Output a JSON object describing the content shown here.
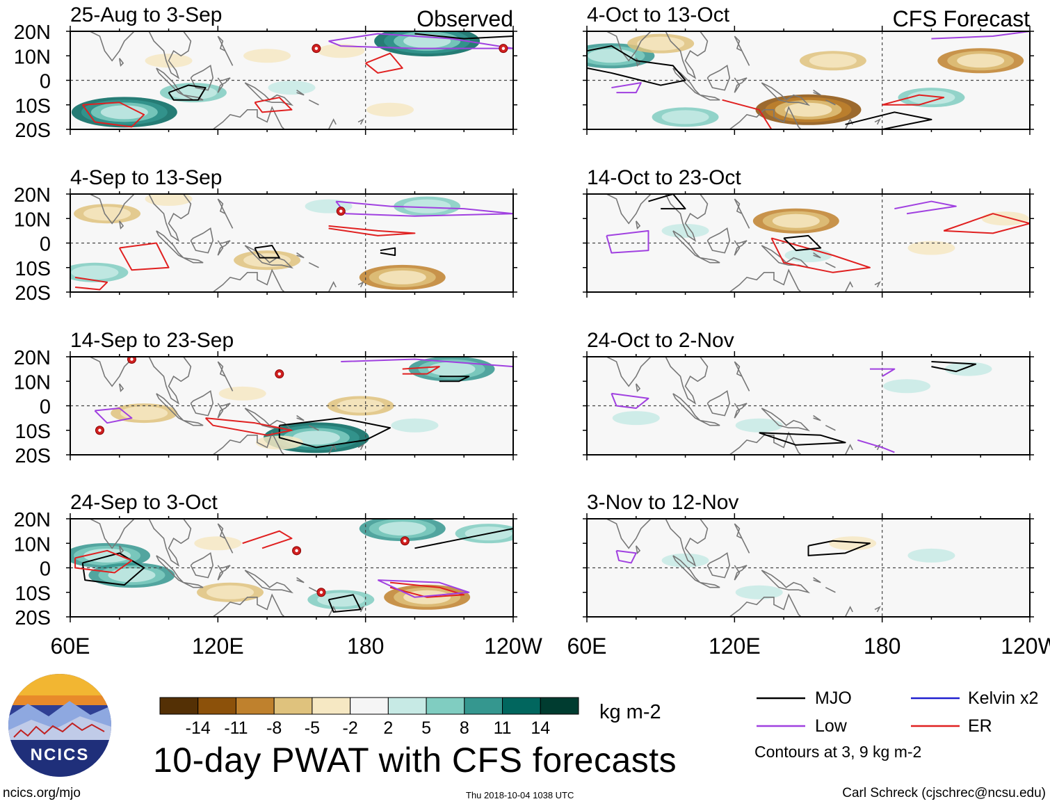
{
  "figure": {
    "title": "10-day PWAT with CFS forecasts",
    "units": "kg m-2",
    "contour_note": "Contours at 3, 9 kg m-2",
    "site": "ncics.org/mjo",
    "timestamp": "Thu 2018-10-04 1038 UTC",
    "author": "Carl Schreck (cjschrec@ncsu.edu)",
    "logo_text": "NCICS"
  },
  "columns": {
    "left_label": "Observed",
    "right_label": "CFS Forecast"
  },
  "axes": {
    "lat_ticks": [
      "20N",
      "10N",
      "0",
      "10S",
      "20S"
    ],
    "lon_ticks": [
      "60E",
      "120E",
      "180",
      "120W"
    ],
    "lat_range": [
      -20,
      20
    ],
    "lon_range": [
      60,
      240
    ]
  },
  "legend": {
    "mjo": "MJO",
    "low": "Low",
    "kelvin": "Kelvin x2",
    "er": "ER",
    "colors": {
      "mjo": "#000000",
      "low": "#a040e0",
      "kelvin": "#2020d0",
      "er": "#e02020"
    }
  },
  "colorbar": {
    "ticks": [
      "-14",
      "-11",
      "-8",
      "-5",
      "-2",
      "2",
      "5",
      "8",
      "11",
      "14"
    ],
    "colors": [
      "#543005",
      "#8c510a",
      "#bf812d",
      "#dfc27d",
      "#f6e8c3",
      "#f5f5f5",
      "#c7eae5",
      "#80cdc1",
      "#35978f",
      "#01665e",
      "#003c30"
    ]
  },
  "chart_data": [
    {
      "type": "heatmap",
      "title": "25-Aug to 3-Sep",
      "column": "Observed",
      "anomalies": [
        {
          "lon": 82,
          "lat": -13,
          "value": 12
        },
        {
          "lon": 110,
          "lat": -5,
          "value": 8
        },
        {
          "lon": 205,
          "lat": 16,
          "value": 12
        },
        {
          "lon": 170,
          "lat": 12,
          "value": -5
        },
        {
          "lon": 140,
          "lat": 10,
          "value": -5
        },
        {
          "lon": 150,
          "lat": -3,
          "value": 5
        },
        {
          "lon": 100,
          "lat": 8,
          "value": -4
        },
        {
          "lon": 190,
          "lat": -12,
          "value": -4
        }
      ],
      "tc_symbols": [
        {
          "lon": 160,
          "lat": 13
        },
        {
          "lon": 236,
          "lat": 13
        }
      ]
    },
    {
      "type": "heatmap",
      "title": "4-Sep to 13-Sep",
      "column": "Observed",
      "anomalies": [
        {
          "lon": 75,
          "lat": 12,
          "value": -8
        },
        {
          "lon": 140,
          "lat": -7,
          "value": -7
        },
        {
          "lon": 195,
          "lat": -14,
          "value": -9
        },
        {
          "lon": 70,
          "lat": -12,
          "value": 8
        },
        {
          "lon": 205,
          "lat": 15,
          "value": 7
        },
        {
          "lon": 165,
          "lat": 15,
          "value": 5
        },
        {
          "lon": 100,
          "lat": 18,
          "value": -5
        }
      ],
      "tc_symbols": [
        {
          "lon": 170,
          "lat": 13
        }
      ]
    },
    {
      "type": "heatmap",
      "title": "14-Sep to 23-Sep",
      "column": "Observed",
      "anomalies": [
        {
          "lon": 160,
          "lat": -13,
          "value": 12
        },
        {
          "lon": 90,
          "lat": -3,
          "value": -8
        },
        {
          "lon": 178,
          "lat": 0,
          "value": -8
        },
        {
          "lon": 215,
          "lat": 15,
          "value": 9
        },
        {
          "lon": 130,
          "lat": 5,
          "value": -5
        },
        {
          "lon": 200,
          "lat": -8,
          "value": 5
        },
        {
          "lon": 145,
          "lat": -15,
          "value": -5
        }
      ],
      "tc_symbols": [
        {
          "lon": 85,
          "lat": 19
        },
        {
          "lon": 145,
          "lat": 13
        },
        {
          "lon": 72,
          "lat": -10
        }
      ]
    },
    {
      "type": "heatmap",
      "title": "24-Sep to 3-Oct",
      "column": "Observed",
      "anomalies": [
        {
          "lon": 75,
          "lat": 5,
          "value": 11
        },
        {
          "lon": 85,
          "lat": -3,
          "value": 9
        },
        {
          "lon": 125,
          "lat": -10,
          "value": -8
        },
        {
          "lon": 170,
          "lat": -13,
          "value": 8
        },
        {
          "lon": 205,
          "lat": -12,
          "value": -10
        },
        {
          "lon": 195,
          "lat": 16,
          "value": 9
        },
        {
          "lon": 230,
          "lat": 14,
          "value": 7
        },
        {
          "lon": 120,
          "lat": 10,
          "value": -5
        }
      ],
      "tc_symbols": [
        {
          "lon": 152,
          "lat": 7
        },
        {
          "lon": 162,
          "lat": -10
        },
        {
          "lon": 196,
          "lat": 11
        }
      ]
    },
    {
      "type": "heatmap",
      "title": "4-Oct to 13-Oct",
      "column": "CFS Forecast",
      "anomalies": [
        {
          "lon": 150,
          "lat": -12,
          "value": -12
        },
        {
          "lon": 220,
          "lat": 8,
          "value": -9
        },
        {
          "lon": 160,
          "lat": 8,
          "value": -7
        },
        {
          "lon": 70,
          "lat": 10,
          "value": 10
        },
        {
          "lon": 200,
          "lat": -7,
          "value": 8
        },
        {
          "lon": 90,
          "lat": 15,
          "value": -6
        },
        {
          "lon": 100,
          "lat": -15,
          "value": 8
        }
      ],
      "tc_symbols": []
    },
    {
      "type": "heatmap",
      "title": "14-Oct to 23-Oct",
      "column": "CFS Forecast",
      "anomalies": [
        {
          "lon": 145,
          "lat": 9,
          "value": -10
        },
        {
          "lon": 200,
          "lat": -2,
          "value": -3
        },
        {
          "lon": 150,
          "lat": -5,
          "value": 5
        },
        {
          "lon": 230,
          "lat": 10,
          "value": -4
        },
        {
          "lon": 100,
          "lat": 5,
          "value": 3
        }
      ],
      "tc_symbols": []
    },
    {
      "type": "heatmap",
      "title": "24-Oct to 2-Nov",
      "column": "CFS Forecast",
      "anomalies": [
        {
          "lon": 190,
          "lat": 8,
          "value": 4
        },
        {
          "lon": 80,
          "lat": -5,
          "value": 4
        },
        {
          "lon": 215,
          "lat": 15,
          "value": 5
        },
        {
          "lon": 130,
          "lat": -8,
          "value": 3
        }
      ],
      "tc_symbols": []
    },
    {
      "type": "heatmap",
      "title": "3-Nov to 12-Nov",
      "column": "CFS Forecast",
      "anomalies": [
        {
          "lon": 200,
          "lat": 5,
          "value": 3
        },
        {
          "lon": 100,
          "lat": 3,
          "value": 3
        },
        {
          "lon": 130,
          "lat": -10,
          "value": 3
        },
        {
          "lon": 168,
          "lat": 10,
          "value": -3
        }
      ],
      "tc_symbols": []
    }
  ]
}
